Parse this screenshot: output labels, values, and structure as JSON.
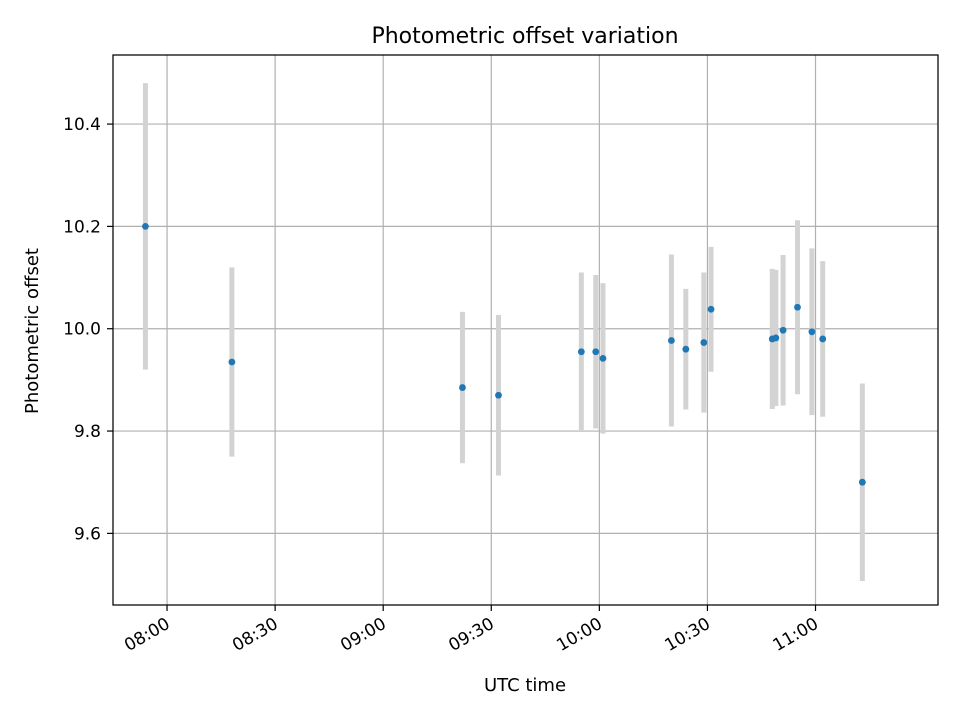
{
  "chart_data": {
    "type": "scatter",
    "title": "Photometric offset variation",
    "xlabel": "UTC time",
    "ylabel": "Photometric offset",
    "x_ticks": [
      "08:00",
      "08:30",
      "09:00",
      "09:30",
      "10:00",
      "10:30",
      "11:00"
    ],
    "y_ticks": [
      "9.6",
      "9.8",
      "10.0",
      "10.2",
      "10.4"
    ],
    "xlim": [
      "07:45",
      "11:34"
    ],
    "ylim": [
      9.46,
      10.535
    ],
    "grid": true,
    "point_color": "#1f77b4",
    "errorbar_color": "#d3d3d3",
    "series": [
      {
        "points": [
          {
            "x": "07:54",
            "y": 10.2,
            "err": 0.28
          },
          {
            "x": "08:18",
            "y": 9.935,
            "err": 0.185
          },
          {
            "x": "09:22",
            "y": 9.885,
            "err": 0.148
          },
          {
            "x": "09:32",
            "y": 9.87,
            "err": 0.157
          },
          {
            "x": "09:55",
            "y": 9.955,
            "err": 0.155
          },
          {
            "x": "09:59",
            "y": 9.955,
            "err": 0.15
          },
          {
            "x": "10:01",
            "y": 9.942,
            "err": 0.147
          },
          {
            "x": "10:20",
            "y": 9.977,
            "err": 0.168
          },
          {
            "x": "10:24",
            "y": 9.96,
            "err": 0.118
          },
          {
            "x": "10:29",
            "y": 9.973,
            "err": 0.137
          },
          {
            "x": "10:31",
            "y": 10.038,
            "err": 0.122
          },
          {
            "x": "10:48",
            "y": 9.98,
            "err": 0.137
          },
          {
            "x": "10:49",
            "y": 9.982,
            "err": 0.133
          },
          {
            "x": "10:51",
            "y": 9.997,
            "err": 0.147
          },
          {
            "x": "10:55",
            "y": 10.042,
            "err": 0.17
          },
          {
            "x": "10:59",
            "y": 9.994,
            "err": 0.163
          },
          {
            "x": "11:02",
            "y": 9.98,
            "err": 0.152
          },
          {
            "x": "11:13",
            "y": 9.7,
            "err": 0.193
          }
        ]
      }
    ]
  }
}
